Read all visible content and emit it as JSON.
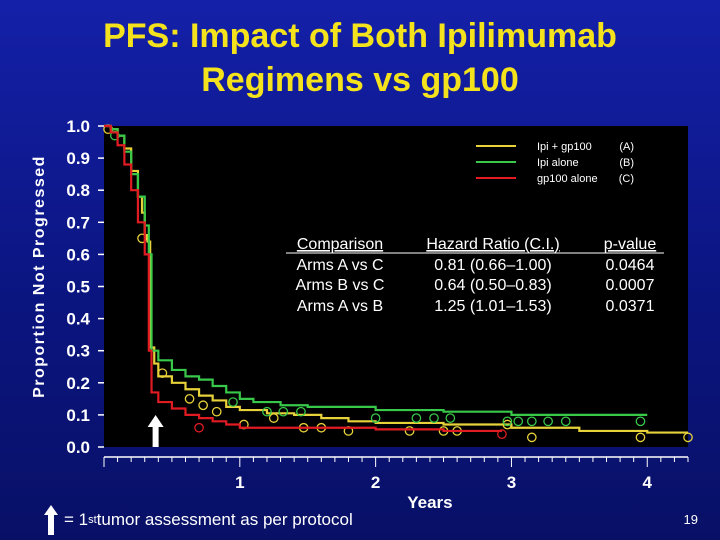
{
  "slide": {
    "title_line1": "PFS: Impact of Both Ipilimumab",
    "title_line2": "Regimens vs gp100",
    "footnote_part1": "= 1",
    "footnote_sup": "st",
    "footnote_part2": " tumor assessment as per protocol",
    "page_number": "19"
  },
  "chart_data": {
    "type": "line",
    "title": "",
    "xlabel": "Years",
    "ylabel": "Proportion Not Progressed",
    "xlim": [
      0,
      4.3
    ],
    "ylim": [
      0,
      1.0
    ],
    "xticks": [
      1,
      2,
      3,
      4
    ],
    "yticks": [
      "0.0",
      "0.1",
      "0.2",
      "0.3",
      "0.4",
      "0.5",
      "0.6",
      "0.7",
      "0.8",
      "0.9",
      "1.0"
    ],
    "legend_position": "top-right",
    "series": [
      {
        "name": "Ipi + gp100 (A)",
        "legend_name": "Ipi + gp100",
        "legend_arm": "(A)",
        "color": "#e8d23a",
        "points": [
          [
            0,
            1.0
          ],
          [
            0.05,
            0.99
          ],
          [
            0.1,
            0.97
          ],
          [
            0.15,
            0.93
          ],
          [
            0.2,
            0.86
          ],
          [
            0.25,
            0.78
          ],
          [
            0.28,
            0.73
          ],
          [
            0.3,
            0.66
          ],
          [
            0.32,
            0.64
          ],
          [
            0.34,
            0.31
          ],
          [
            0.37,
            0.26
          ],
          [
            0.4,
            0.22
          ],
          [
            0.5,
            0.2
          ],
          [
            0.6,
            0.18
          ],
          [
            0.7,
            0.16
          ],
          [
            0.8,
            0.145
          ],
          [
            0.9,
            0.125
          ],
          [
            1.0,
            0.115
          ],
          [
            1.2,
            0.105
          ],
          [
            1.4,
            0.1
          ],
          [
            1.6,
            0.09
          ],
          [
            1.8,
            0.08
          ],
          [
            2.0,
            0.075
          ],
          [
            2.5,
            0.07
          ],
          [
            3.0,
            0.06
          ],
          [
            3.5,
            0.05
          ],
          [
            4.0,
            0.045
          ],
          [
            4.3,
            0.045
          ]
        ],
        "censored": [
          [
            0.03,
            0.99
          ],
          [
            0.28,
            0.65
          ],
          [
            0.43,
            0.23
          ],
          [
            0.63,
            0.15
          ],
          [
            0.73,
            0.13
          ],
          [
            0.83,
            0.11
          ],
          [
            1.03,
            0.07
          ],
          [
            1.25,
            0.09
          ],
          [
            1.47,
            0.06
          ],
          [
            1.6,
            0.06
          ],
          [
            1.8,
            0.05
          ],
          [
            2.25,
            0.05
          ],
          [
            2.5,
            0.05
          ],
          [
            2.6,
            0.05
          ],
          [
            2.97,
            0.07
          ],
          [
            3.15,
            0.03
          ],
          [
            3.95,
            0.03
          ],
          [
            4.3,
            0.03
          ]
        ]
      },
      {
        "name": "Ipi alone (B)",
        "legend_name": "Ipi alone",
        "legend_arm": "(B)",
        "color": "#38c84a",
        "points": [
          [
            0,
            1.0
          ],
          [
            0.05,
            0.99
          ],
          [
            0.1,
            0.97
          ],
          [
            0.15,
            0.92
          ],
          [
            0.2,
            0.85
          ],
          [
            0.25,
            0.78
          ],
          [
            0.3,
            0.69
          ],
          [
            0.33,
            0.6
          ],
          [
            0.35,
            0.3
          ],
          [
            0.4,
            0.27
          ],
          [
            0.5,
            0.24
          ],
          [
            0.6,
            0.22
          ],
          [
            0.7,
            0.21
          ],
          [
            0.8,
            0.19
          ],
          [
            0.9,
            0.17
          ],
          [
            1.0,
            0.15
          ],
          [
            1.1,
            0.14
          ],
          [
            1.3,
            0.13
          ],
          [
            1.5,
            0.125
          ],
          [
            2.0,
            0.115
          ],
          [
            2.5,
            0.11
          ],
          [
            3.0,
            0.1
          ],
          [
            4.0,
            0.1
          ]
        ],
        "censored": [
          [
            0.08,
            0.97
          ],
          [
            0.95,
            0.14
          ],
          [
            1.2,
            0.11
          ],
          [
            1.32,
            0.11
          ],
          [
            1.45,
            0.11
          ],
          [
            2.0,
            0.09
          ],
          [
            2.3,
            0.09
          ],
          [
            2.43,
            0.09
          ],
          [
            2.55,
            0.09
          ],
          [
            2.97,
            0.08
          ],
          [
            3.05,
            0.08
          ],
          [
            3.15,
            0.08
          ],
          [
            3.27,
            0.08
          ],
          [
            3.4,
            0.08
          ],
          [
            3.95,
            0.08
          ]
        ]
      },
      {
        "name": "gp100 alone (C)",
        "legend_name": "gp100 alone",
        "legend_arm": "(C)",
        "color": "#e01b22",
        "points": [
          [
            0,
            1.0
          ],
          [
            0.05,
            0.98
          ],
          [
            0.1,
            0.94
          ],
          [
            0.15,
            0.88
          ],
          [
            0.2,
            0.8
          ],
          [
            0.25,
            0.7
          ],
          [
            0.3,
            0.6
          ],
          [
            0.33,
            0.3
          ],
          [
            0.35,
            0.17
          ],
          [
            0.4,
            0.14
          ],
          [
            0.5,
            0.12
          ],
          [
            0.6,
            0.1
          ],
          [
            0.7,
            0.09
          ],
          [
            0.8,
            0.08
          ],
          [
            0.9,
            0.07
          ],
          [
            1.0,
            0.06
          ],
          [
            1.5,
            0.06
          ],
          [
            2.0,
            0.055
          ],
          [
            2.5,
            0.05
          ],
          [
            2.93,
            0.05
          ]
        ],
        "censored": [
          [
            0.7,
            0.06
          ],
          [
            2.93,
            0.04
          ]
        ]
      }
    ],
    "first_assessment_marker_x": 0.38,
    "comparison_table": {
      "headers": [
        "Comparison",
        "Hazard Ratio (C.I.)",
        "p-value"
      ],
      "rows": [
        [
          "Arms  A vs  C",
          "0.81 (0.66–1.00)",
          "0.0464"
        ],
        [
          "Arms  B vs  C",
          "0.64 (0.50–0.83)",
          "0.0007"
        ],
        [
          "Arms  A vs  B",
          "1.25 (1.01–1.53)",
          "0.0371"
        ]
      ]
    }
  }
}
